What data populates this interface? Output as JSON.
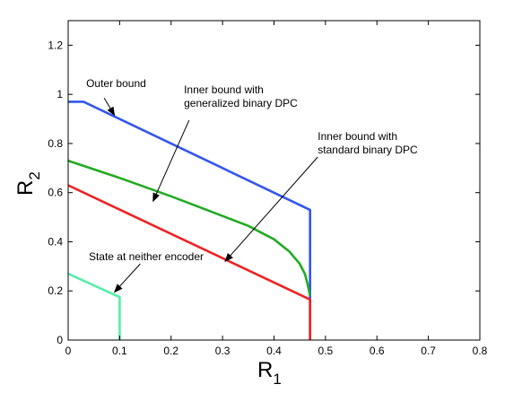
{
  "chart_data": {
    "type": "line",
    "title": "",
    "xlabel": "R",
    "xlabel_sub": "1",
    "ylabel": "R",
    "ylabel_sub": "2",
    "xlim": [
      0,
      0.8
    ],
    "ylim": [
      0,
      1.3
    ],
    "xticks": [
      0,
      0.1,
      0.2,
      0.3,
      0.4,
      0.5,
      0.6,
      0.7,
      0.8
    ],
    "yticks": [
      0,
      0.2,
      0.4,
      0.6,
      0.8,
      1.0,
      1.2
    ],
    "xtick_labels": [
      "0",
      "0.1",
      "0.2",
      "0.3",
      "0.4",
      "0.5",
      "0.6",
      "0.7",
      "0.8"
    ],
    "ytick_labels": [
      "0",
      "0.2",
      "0.4",
      "0.6",
      "0.8",
      "1",
      "1.2"
    ],
    "grid": false,
    "series": [
      {
        "color": "#3355ee",
        "points": [
          [
            0,
            0.97
          ],
          [
            0.03,
            0.97
          ],
          [
            0.47,
            0.53
          ],
          [
            0.47,
            0
          ]
        ]
      },
      {
        "color": "#22aa22",
        "points": [
          [
            0,
            0.73
          ],
          [
            0.1,
            0.66
          ],
          [
            0.2,
            0.585
          ],
          [
            0.3,
            0.505
          ],
          [
            0.35,
            0.465
          ],
          [
            0.4,
            0.41
          ],
          [
            0.43,
            0.36
          ],
          [
            0.45,
            0.31
          ],
          [
            0.46,
            0.27
          ],
          [
            0.465,
            0.23
          ],
          [
            0.47,
            0.18
          ]
        ]
      },
      {
        "color": "#ee2222",
        "points": [
          [
            0,
            0.63
          ],
          [
            0.47,
            0.165
          ],
          [
            0.47,
            0
          ]
        ]
      },
      {
        "color": "#55eeaa",
        "points": [
          [
            0,
            0.27
          ],
          [
            0.1,
            0.175
          ],
          [
            0.1,
            0
          ]
        ]
      }
    ],
    "annotations": [
      {
        "lines": [
          "Outer bound"
        ],
        "text_at": [
          0.035,
          1.03
        ],
        "arrow_from": [
          0.07,
          0.985
        ],
        "arrow_to": [
          0.09,
          0.915
        ]
      },
      {
        "lines": [
          "Inner bound with",
          "generalized binary DPC"
        ],
        "text_at": [
          0.225,
          1.005
        ],
        "arrow_from": [
          0.235,
          0.895
        ],
        "arrow_to": [
          0.165,
          0.565
        ]
      },
      {
        "lines": [
          "Inner bound with",
          "standard binary DPC"
        ],
        "text_at": [
          0.485,
          0.815
        ],
        "arrow_from": [
          0.485,
          0.745
        ],
        "arrow_to": [
          0.305,
          0.32
        ]
      },
      {
        "lines": [
          "State at neither encoder"
        ],
        "text_at": [
          0.04,
          0.325
        ],
        "arrow_from": [
          0.14,
          0.31
        ],
        "arrow_to": [
          0.09,
          0.195
        ]
      }
    ]
  }
}
